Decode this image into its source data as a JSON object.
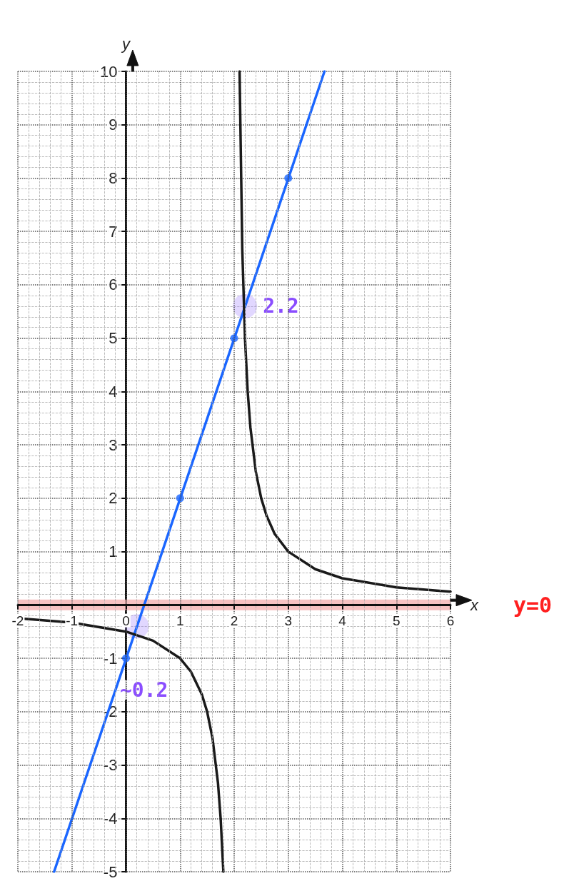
{
  "chart_data": {
    "type": "line",
    "xlabel": "x",
    "ylabel": "y",
    "xlim": [
      -2,
      6
    ],
    "xticks": [
      -2,
      -1,
      0,
      1,
      2,
      3,
      4,
      5,
      6
    ],
    "ylim": [
      -5,
      10
    ],
    "yticks": [
      -5,
      -4,
      -3,
      -2,
      -1,
      {
        "value": 0,
        "label": null
      },
      1,
      2,
      3,
      4,
      5,
      6,
      7,
      8,
      9,
      10
    ],
    "grid": true,
    "series": [
      {
        "color": "#1a66ff",
        "x": [
          -1.33,
          3.67
        ],
        "values": [
          -5,
          10
        ],
        "marker": "none"
      },
      {
        "type": "scatter",
        "color": "#1a66ff",
        "x": [
          0,
          1,
          2,
          3
        ],
        "values": [
          -1,
          2,
          5,
          8
        ],
        "marker": "circle"
      },
      {
        "color": "#1a1a1a",
        "marker": "none",
        "x": [
          -2,
          -1,
          0,
          0.5,
          1,
          1.2,
          1.4,
          1.5,
          1.6,
          1.7,
          1.75,
          1.8,
          2,
          2.1,
          2.15,
          2.2,
          2.25,
          2.3,
          2.4,
          2.5,
          2.6,
          2.75,
          3,
          3.5,
          4,
          5,
          6
        ],
        "values": [
          -0.25,
          -0.33,
          -0.5,
          -0.67,
          -1,
          -1.25,
          -1.67,
          -2,
          -2.5,
          -3.33,
          -4,
          -5,
          null,
          10,
          6.67,
          5,
          4,
          3.33,
          2.5,
          2,
          1.67,
          1.33,
          1,
          0.67,
          0.5,
          0.33,
          0.25
        ]
      }
    ],
    "bands": [
      {
        "axis": "y",
        "from": -0.1,
        "to": 0.1,
        "label": "y=0",
        "color": "#f5b3b3"
      }
    ],
    "annotations": [
      {
        "text": "2.2",
        "x": 2.2,
        "y": 5.6
      },
      {
        "text": "~0.2",
        "x": 0.2,
        "y": -0.4
      }
    ]
  }
}
